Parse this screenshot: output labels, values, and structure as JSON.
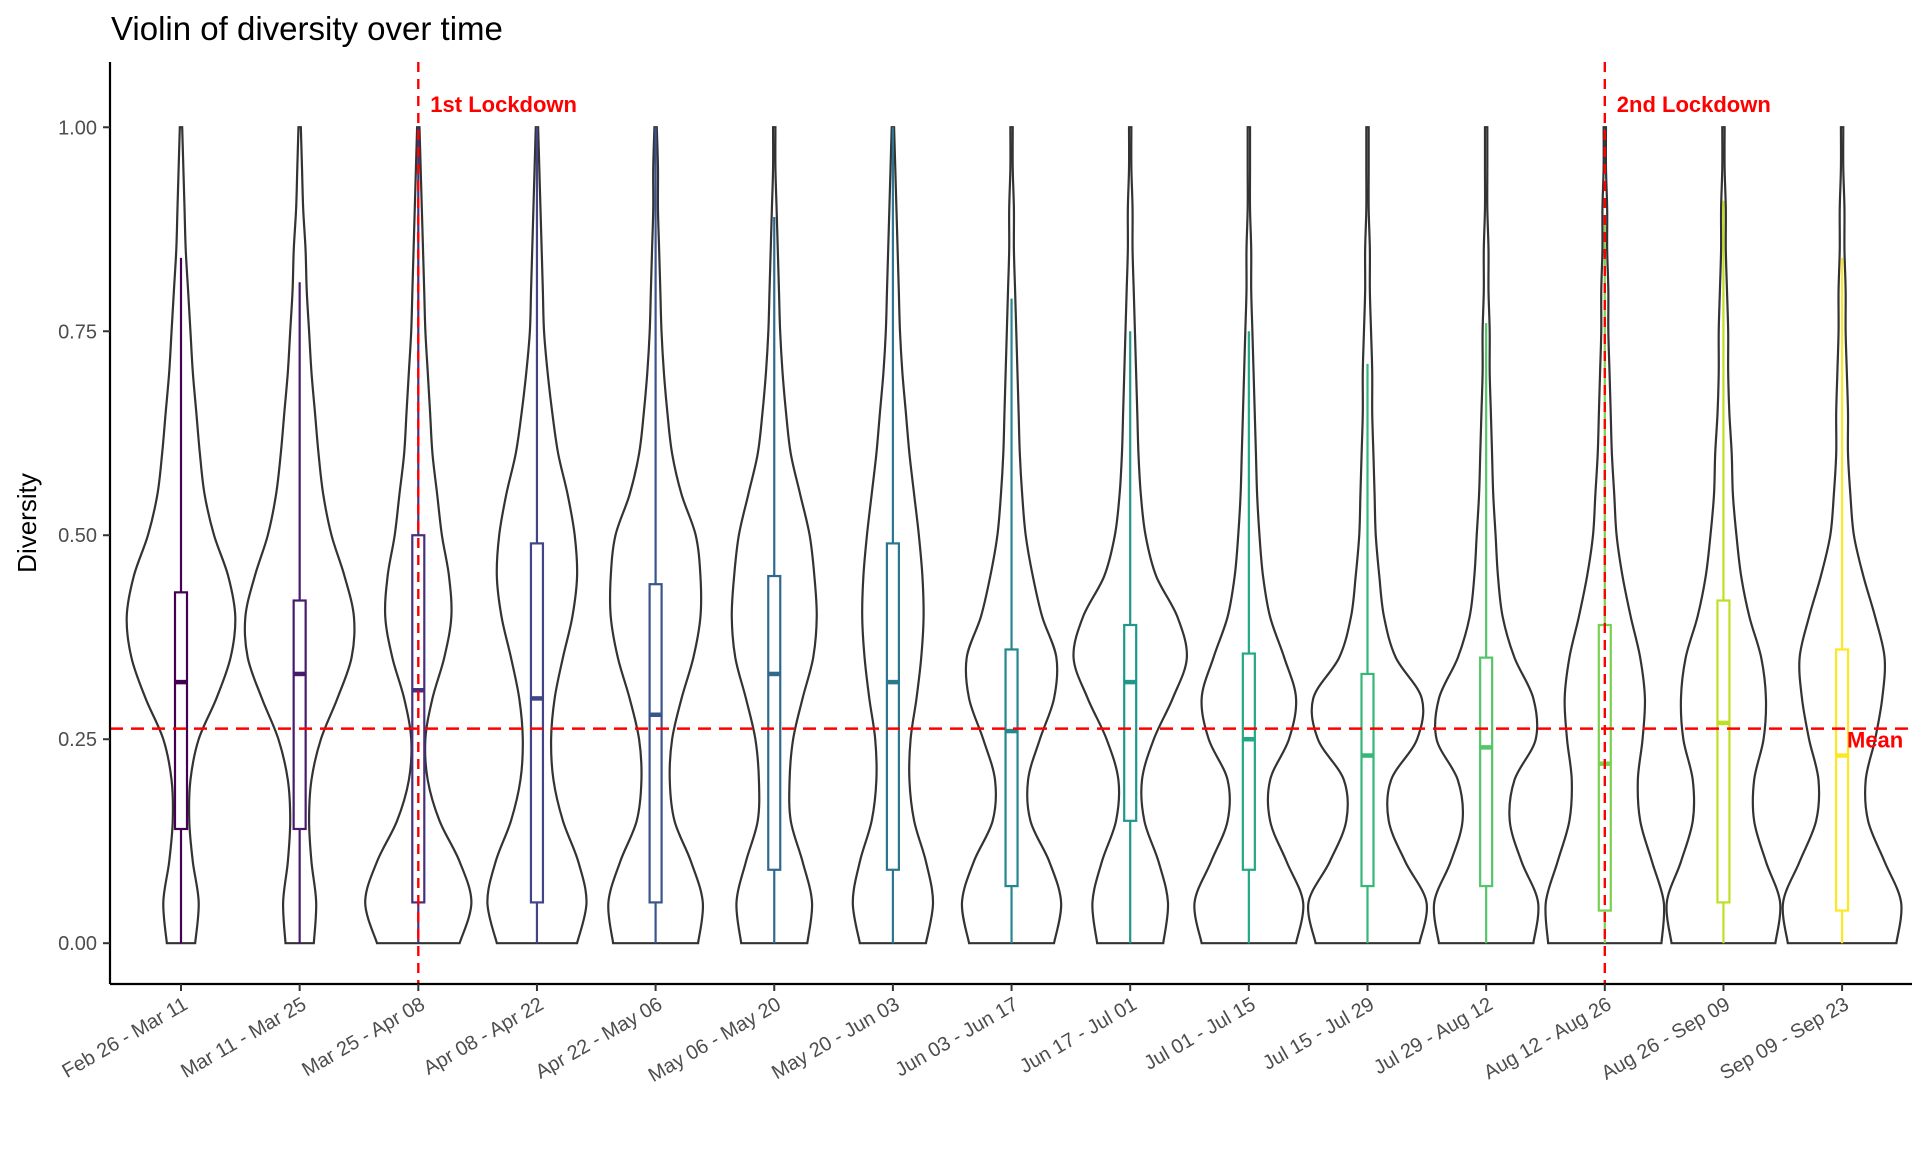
{
  "chart_data": {
    "type": "violin",
    "title": "Violin of diversity over time",
    "xlabel": "",
    "ylabel": "Diversity",
    "ylim": [
      -0.05,
      1.08
    ],
    "yticks": [
      0.0,
      0.25,
      0.5,
      0.75,
      1.0
    ],
    "ytick_labels": [
      "0.00",
      "0.25",
      "0.50",
      "0.75",
      "1.00"
    ],
    "grid": false,
    "legend": "none",
    "colors": {
      "violin_outline": "#333333",
      "reference_lines": "#ff0000",
      "axis": "#000000"
    },
    "categories": [
      "Feb 26 - Mar 11",
      "Mar 11 - Mar 25",
      "Mar 25 - Apr 08",
      "Apr 08 - Apr 22",
      "Apr 22 - May 06",
      "May 06 - May 20",
      "May 20 - Jun 03",
      "Jun 03 - Jun 17",
      "Jun 17 - Jul 01",
      "Jul 01 - Jul 15",
      "Jul 15 - Jul 29",
      "Jul 29 - Aug 12",
      "Aug 12 - Aug 26",
      "Aug 26 - Sep 09",
      "Sep 09 - Sep 23"
    ],
    "boxplots": [
      {
        "category": "Feb 26 - Mar 11",
        "min": 0.0,
        "q1": 0.14,
        "median": 0.32,
        "q3": 0.43,
        "whisker_high": 0.84,
        "color": "#440154"
      },
      {
        "category": "Mar 11 - Mar 25",
        "min": 0.0,
        "q1": 0.14,
        "median": 0.33,
        "q3": 0.42,
        "whisker_high": 0.81,
        "color": "#481a6c"
      },
      {
        "category": "Mar 25 - Apr 08",
        "min": 0.0,
        "q1": 0.05,
        "median": 0.31,
        "q3": 0.5,
        "whisker_high": 1.0,
        "color": "#472f7d"
      },
      {
        "category": "Apr 08 - Apr 22",
        "min": 0.0,
        "q1": 0.05,
        "median": 0.3,
        "q3": 0.49,
        "whisker_high": 1.0,
        "color": "#414487"
      },
      {
        "category": "Apr 22 - May 06",
        "min": 0.0,
        "q1": 0.05,
        "median": 0.28,
        "q3": 0.44,
        "whisker_high": 1.0,
        "color": "#39568c"
      },
      {
        "category": "May 06 - May 20",
        "min": 0.0,
        "q1": 0.09,
        "median": 0.33,
        "q3": 0.45,
        "whisker_high": 0.89,
        "color": "#31688e"
      },
      {
        "category": "May 20 - Jun 03",
        "min": 0.0,
        "q1": 0.09,
        "median": 0.32,
        "q3": 0.49,
        "whisker_high": 1.0,
        "color": "#2a788e"
      },
      {
        "category": "Jun 03 - Jun 17",
        "min": 0.0,
        "q1": 0.07,
        "median": 0.26,
        "q3": 0.36,
        "whisker_high": 0.79,
        "color": "#23888e"
      },
      {
        "category": "Jun 17 - Jul 01",
        "min": 0.0,
        "q1": 0.15,
        "median": 0.32,
        "q3": 0.39,
        "whisker_high": 0.75,
        "color": "#1f988b"
      },
      {
        "category": "Jul 01 - Jul 15",
        "min": 0.0,
        "q1": 0.09,
        "median": 0.25,
        "q3": 0.355,
        "whisker_high": 0.75,
        "color": "#22a884"
      },
      {
        "category": "Jul 15 - Jul 29",
        "min": 0.0,
        "q1": 0.07,
        "median": 0.23,
        "q3": 0.33,
        "whisker_high": 0.71,
        "color": "#35b779"
      },
      {
        "category": "Jul 29 - Aug 12",
        "min": 0.0,
        "q1": 0.07,
        "median": 0.24,
        "q3": 0.35,
        "whisker_high": 0.76,
        "color": "#54c568"
      },
      {
        "category": "Aug 12 - Aug 26",
        "min": 0.0,
        "q1": 0.04,
        "median": 0.22,
        "q3": 0.39,
        "whisker_high": 0.88,
        "color": "#7ad151"
      },
      {
        "category": "Aug 26 - Sep 09",
        "min": 0.0,
        "q1": 0.05,
        "median": 0.27,
        "q3": 0.42,
        "whisker_high": 0.91,
        "color": "#bddf26"
      },
      {
        "category": "Sep 09 - Sep 23",
        "min": 0.0,
        "q1": 0.04,
        "median": 0.23,
        "q3": 0.36,
        "whisker_high": 0.84,
        "color": "#fde725"
      }
    ],
    "violins": [
      {
        "category": "Feb 26 - Mar 11",
        "y": [
          0.0,
          0.05,
          0.1,
          0.15,
          0.2,
          0.25,
          0.3,
          0.35,
          0.4,
          0.45,
          0.5,
          0.55,
          0.6,
          0.65,
          0.7,
          0.75,
          0.8,
          0.85,
          0.9,
          0.95,
          1.0
        ],
        "half_width": [
          0.12,
          0.15,
          0.1,
          0.07,
          0.08,
          0.15,
          0.3,
          0.42,
          0.46,
          0.4,
          0.28,
          0.2,
          0.16,
          0.13,
          0.1,
          0.08,
          0.06,
          0.04,
          0.03,
          0.02,
          0.01
        ]
      },
      {
        "category": "Mar 11 - Mar 25",
        "y": [
          0.0,
          0.05,
          0.1,
          0.15,
          0.2,
          0.25,
          0.3,
          0.35,
          0.4,
          0.45,
          0.5,
          0.55,
          0.6,
          0.65,
          0.7,
          0.75,
          0.8,
          0.85,
          0.9,
          0.95,
          1.0
        ],
        "half_width": [
          0.12,
          0.14,
          0.1,
          0.08,
          0.1,
          0.18,
          0.32,
          0.44,
          0.46,
          0.38,
          0.27,
          0.2,
          0.16,
          0.13,
          0.1,
          0.08,
          0.06,
          0.05,
          0.03,
          0.02,
          0.01
        ]
      },
      {
        "category": "Mar 25 - Apr 08",
        "y": [
          0.0,
          0.05,
          0.1,
          0.15,
          0.2,
          0.25,
          0.3,
          0.35,
          0.4,
          0.45,
          0.5,
          0.55,
          0.6,
          0.65,
          0.7,
          0.75,
          0.8,
          0.85,
          0.9,
          0.95,
          1.0
        ],
        "half_width": [
          0.35,
          0.45,
          0.35,
          0.18,
          0.08,
          0.06,
          0.12,
          0.22,
          0.28,
          0.26,
          0.2,
          0.16,
          0.12,
          0.1,
          0.08,
          0.06,
          0.05,
          0.04,
          0.03,
          0.02,
          0.01
        ]
      },
      {
        "category": "Apr 08 - Apr 22",
        "y": [
          0.0,
          0.05,
          0.1,
          0.15,
          0.2,
          0.25,
          0.3,
          0.35,
          0.4,
          0.45,
          0.5,
          0.55,
          0.6,
          0.65,
          0.7,
          0.75,
          0.8,
          0.85,
          0.9,
          0.95,
          1.0
        ],
        "half_width": [
          0.34,
          0.42,
          0.35,
          0.22,
          0.14,
          0.12,
          0.15,
          0.22,
          0.3,
          0.34,
          0.32,
          0.26,
          0.18,
          0.13,
          0.09,
          0.06,
          0.05,
          0.04,
          0.03,
          0.02,
          0.01
        ]
      },
      {
        "category": "Apr 22 - May 06",
        "y": [
          0.0,
          0.05,
          0.1,
          0.15,
          0.2,
          0.25,
          0.3,
          0.35,
          0.4,
          0.45,
          0.5,
          0.55,
          0.6,
          0.65,
          0.7,
          0.75,
          0.8,
          0.85,
          0.9,
          0.95,
          1.0
        ],
        "half_width": [
          0.36,
          0.4,
          0.3,
          0.16,
          0.12,
          0.14,
          0.22,
          0.32,
          0.38,
          0.38,
          0.34,
          0.22,
          0.14,
          0.1,
          0.07,
          0.05,
          0.04,
          0.03,
          0.02,
          0.02,
          0.01
        ]
      },
      {
        "category": "May 06 - May 20",
        "y": [
          0.0,
          0.05,
          0.1,
          0.15,
          0.2,
          0.25,
          0.3,
          0.35,
          0.4,
          0.45,
          0.5,
          0.55,
          0.6,
          0.65,
          0.7,
          0.75,
          0.8,
          0.85,
          0.9,
          0.95,
          1.0
        ],
        "half_width": [
          0.28,
          0.32,
          0.24,
          0.14,
          0.13,
          0.16,
          0.24,
          0.33,
          0.36,
          0.34,
          0.3,
          0.22,
          0.14,
          0.1,
          0.07,
          0.05,
          0.04,
          0.03,
          0.02,
          0.01,
          0.01
        ]
      },
      {
        "category": "May 20 - Jun 03",
        "y": [
          0.0,
          0.05,
          0.1,
          0.15,
          0.2,
          0.25,
          0.3,
          0.35,
          0.4,
          0.45,
          0.5,
          0.55,
          0.6,
          0.65,
          0.7,
          0.75,
          0.8,
          0.85,
          0.9,
          0.95,
          1.0
        ],
        "half_width": [
          0.28,
          0.34,
          0.28,
          0.18,
          0.14,
          0.15,
          0.2,
          0.24,
          0.26,
          0.25,
          0.22,
          0.18,
          0.14,
          0.11,
          0.08,
          0.06,
          0.05,
          0.04,
          0.03,
          0.02,
          0.01
        ]
      },
      {
        "category": "Jun 03 - Jun 17",
        "y": [
          0.0,
          0.05,
          0.1,
          0.15,
          0.2,
          0.25,
          0.3,
          0.35,
          0.4,
          0.45,
          0.5,
          0.55,
          0.6,
          0.65,
          0.7,
          0.75,
          0.8,
          0.85,
          0.9,
          0.95,
          1.0
        ],
        "half_width": [
          0.36,
          0.42,
          0.32,
          0.16,
          0.14,
          0.24,
          0.36,
          0.38,
          0.26,
          0.18,
          0.12,
          0.09,
          0.07,
          0.06,
          0.05,
          0.04,
          0.03,
          0.02,
          0.02,
          0.01,
          0.01
        ]
      },
      {
        "category": "Jun 17 - Jul 01",
        "y": [
          0.0,
          0.05,
          0.1,
          0.15,
          0.2,
          0.25,
          0.3,
          0.35,
          0.4,
          0.45,
          0.5,
          0.55,
          0.6,
          0.65,
          0.7,
          0.75,
          0.8,
          0.85,
          0.9,
          0.95,
          1.0
        ],
        "half_width": [
          0.28,
          0.32,
          0.24,
          0.12,
          0.1,
          0.2,
          0.36,
          0.48,
          0.4,
          0.22,
          0.13,
          0.09,
          0.07,
          0.06,
          0.05,
          0.04,
          0.03,
          0.02,
          0.02,
          0.01,
          0.01
        ]
      },
      {
        "category": "Jul 01 - Jul 15",
        "y": [
          0.0,
          0.05,
          0.1,
          0.15,
          0.2,
          0.25,
          0.3,
          0.35,
          0.4,
          0.45,
          0.5,
          0.55,
          0.6,
          0.65,
          0.7,
          0.75,
          0.8,
          0.85,
          0.9,
          0.95,
          1.0
        ],
        "half_width": [
          0.4,
          0.46,
          0.32,
          0.18,
          0.18,
          0.34,
          0.4,
          0.3,
          0.18,
          0.12,
          0.09,
          0.07,
          0.06,
          0.05,
          0.04,
          0.03,
          0.02,
          0.02,
          0.01,
          0.01,
          0.01
        ]
      },
      {
        "category": "Jul 15 - Jul 29",
        "y": [
          0.0,
          0.05,
          0.1,
          0.15,
          0.2,
          0.25,
          0.3,
          0.35,
          0.4,
          0.45,
          0.5,
          0.55,
          0.6,
          0.65,
          0.7,
          0.75,
          0.8,
          0.85,
          0.9,
          0.95,
          1.0
        ],
        "half_width": [
          0.44,
          0.5,
          0.32,
          0.18,
          0.2,
          0.42,
          0.46,
          0.24,
          0.14,
          0.1,
          0.07,
          0.06,
          0.05,
          0.04,
          0.04,
          0.03,
          0.02,
          0.02,
          0.01,
          0.01,
          0.01
        ]
      },
      {
        "category": "Jul 29 - Aug 12",
        "y": [
          0.0,
          0.05,
          0.1,
          0.15,
          0.2,
          0.25,
          0.3,
          0.35,
          0.4,
          0.45,
          0.5,
          0.55,
          0.6,
          0.65,
          0.7,
          0.75,
          0.8,
          0.85,
          0.9,
          0.95,
          1.0
        ],
        "half_width": [
          0.4,
          0.44,
          0.3,
          0.2,
          0.24,
          0.42,
          0.4,
          0.24,
          0.14,
          0.1,
          0.08,
          0.06,
          0.05,
          0.04,
          0.03,
          0.03,
          0.02,
          0.02,
          0.01,
          0.01,
          0.01
        ]
      },
      {
        "category": "Aug 12 - Aug 26",
        "y": [
          0.0,
          0.05,
          0.1,
          0.15,
          0.2,
          0.25,
          0.3,
          0.35,
          0.4,
          0.45,
          0.5,
          0.55,
          0.6,
          0.65,
          0.7,
          0.75,
          0.8,
          0.85,
          0.9,
          0.95,
          1.0
        ],
        "half_width": [
          0.48,
          0.5,
          0.4,
          0.3,
          0.28,
          0.32,
          0.34,
          0.3,
          0.22,
          0.15,
          0.1,
          0.08,
          0.06,
          0.05,
          0.04,
          0.03,
          0.03,
          0.02,
          0.02,
          0.01,
          0.01
        ]
      },
      {
        "category": "Aug 26 - Sep 09",
        "y": [
          0.0,
          0.05,
          0.1,
          0.15,
          0.2,
          0.25,
          0.3,
          0.35,
          0.4,
          0.45,
          0.5,
          0.55,
          0.6,
          0.65,
          0.7,
          0.75,
          0.8,
          0.85,
          0.9,
          0.95,
          1.0
        ],
        "half_width": [
          0.44,
          0.48,
          0.36,
          0.26,
          0.26,
          0.34,
          0.36,
          0.32,
          0.22,
          0.15,
          0.11,
          0.08,
          0.07,
          0.05,
          0.04,
          0.04,
          0.03,
          0.02,
          0.02,
          0.01,
          0.01
        ]
      },
      {
        "category": "Sep 09 - Sep 23",
        "y": [
          0.0,
          0.05,
          0.1,
          0.15,
          0.2,
          0.25,
          0.3,
          0.35,
          0.4,
          0.45,
          0.5,
          0.55,
          0.6,
          0.65,
          0.7,
          0.75,
          0.8,
          0.85,
          0.9,
          0.95,
          1.0
        ],
        "half_width": [
          0.46,
          0.5,
          0.36,
          0.22,
          0.2,
          0.28,
          0.34,
          0.36,
          0.28,
          0.18,
          0.1,
          0.07,
          0.05,
          0.05,
          0.04,
          0.03,
          0.03,
          0.02,
          0.02,
          0.01,
          0.01
        ]
      }
    ],
    "annotations": [
      {
        "kind": "vline",
        "category": "Mar 25 - Apr 08",
        "label": "1st Lockdown",
        "color": "#ff0000",
        "style": "dashed"
      },
      {
        "kind": "vline",
        "category": "Aug 12 - Aug 26",
        "label": "2nd Lockdown",
        "color": "#ff0000",
        "style": "dashed"
      },
      {
        "kind": "hline",
        "y": 0.263,
        "label": "Mean",
        "color": "#ff0000",
        "style": "dashed"
      }
    ]
  }
}
